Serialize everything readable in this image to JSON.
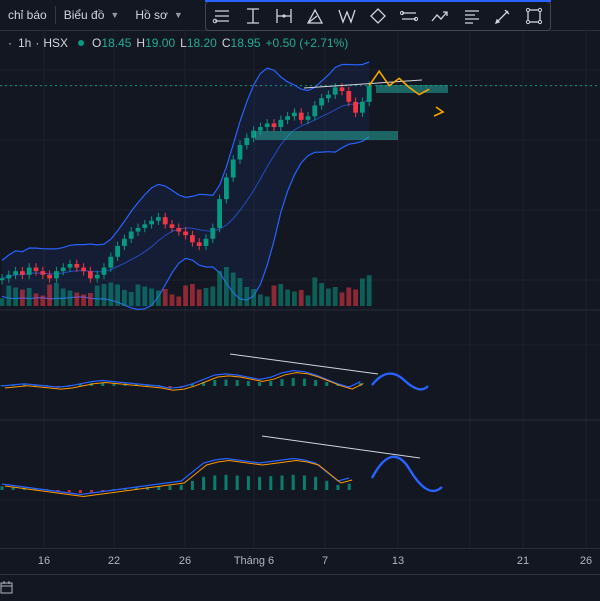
{
  "menu": {
    "indicators_label": "chỉ báo",
    "chart_type_label": "Biểu đồ",
    "profile_label": "Hồ sơ"
  },
  "drawing_tools": [
    "trend-line-icon",
    "horizontal-line-icon",
    "pitchfork-icon",
    "fib-retracement-icon",
    "xabcd-pattern-icon",
    "ellipse-icon",
    "path-icon",
    "forecast-arrow-icon",
    "long-position-icon",
    "brush-icon",
    "rectangle-icon"
  ],
  "legend": {
    "interval": "1h",
    "exchange": "HSX",
    "prefix": "·",
    "open_label": "O",
    "open": "18.45",
    "high_label": "H",
    "high": "19.00",
    "low_label": "L",
    "low": "18.20",
    "close_label": "C",
    "close": "18.95",
    "change": "+0.50 (+2.71%)"
  },
  "xaxis": {
    "ticks": [
      "16",
      "22",
      "26",
      "Tháng 6",
      "7",
      "13",
      "21",
      "26"
    ]
  },
  "colors": {
    "up": "#089981",
    "down": "#f23645",
    "band": "#2962ff",
    "forecast_price": "#f7a600",
    "forecast_osc": "#2962ff",
    "macd": "#2962ff",
    "signal": "#ff9800",
    "trendline": "#d1d4dc"
  },
  "chart_data": [
    {
      "type": "candlestick",
      "title": "",
      "interval": "1h",
      "ohlc_last": {
        "open": 18.45,
        "high": 19.0,
        "low": 18.2,
        "close": 18.95
      },
      "close_series": [
        13.6,
        13.7,
        13.8,
        13.7,
        13.9,
        13.8,
        13.7,
        13.6,
        13.8,
        13.9,
        14.0,
        13.9,
        13.8,
        13.6,
        13.7,
        13.9,
        14.2,
        14.5,
        14.7,
        14.9,
        15.0,
        15.1,
        15.2,
        15.3,
        15.1,
        15.0,
        14.9,
        14.8,
        14.6,
        14.5,
        14.7,
        15.0,
        15.8,
        16.4,
        16.9,
        17.3,
        17.5,
        17.7,
        17.8,
        17.9,
        17.8,
        18.0,
        18.1,
        18.2,
        18.0,
        18.1,
        18.4,
        18.6,
        18.7,
        18.9,
        18.8,
        18.5,
        18.2,
        18.5,
        18.95
      ],
      "indicators": [
        "Bollinger Bands",
        "Volume"
      ],
      "forecast_path": [
        18.95,
        19.35,
        18.95,
        19.15,
        18.9,
        18.7,
        18.85
      ],
      "zones": [
        {
          "level": 18.1,
          "label": "support"
        },
        {
          "level": 19.15,
          "label": "resistance"
        }
      ]
    },
    {
      "type": "line",
      "title": "",
      "series": [
        {
          "values": [
            0,
            0.05,
            0.1,
            0.05,
            0,
            -0.05,
            0,
            0.1,
            0.2,
            0.25,
            0.2,
            0.15,
            0.1,
            0.05,
            0,
            -0.1,
            -0.05,
            0.1,
            0.3,
            0.5,
            0.55,
            0.5,
            0.4,
            0.3,
            0.4,
            0.6,
            0.7,
            0.65,
            0.5,
            0.3,
            0.1,
            -0.05,
            0.2
          ]
        }
      ],
      "forecast": "rise then dip"
    },
    {
      "type": "line",
      "title": "",
      "series": [
        {
          "values": [
            0.2,
            0.15,
            0.1,
            0.05,
            0,
            -0.05,
            -0.1,
            -0.15,
            -0.1,
            -0.05,
            0,
            0.05,
            0.1,
            0.15,
            0.2,
            0.25,
            0.3,
            0.6,
            0.9,
            1.0,
            1.05,
            1.0,
            0.95,
            0.9,
            0.95,
            1.0,
            1.05,
            1.0,
            0.9,
            0.6,
            0.3,
            0.4
          ]
        }
      ],
      "forecast": "rise then fall"
    }
  ]
}
